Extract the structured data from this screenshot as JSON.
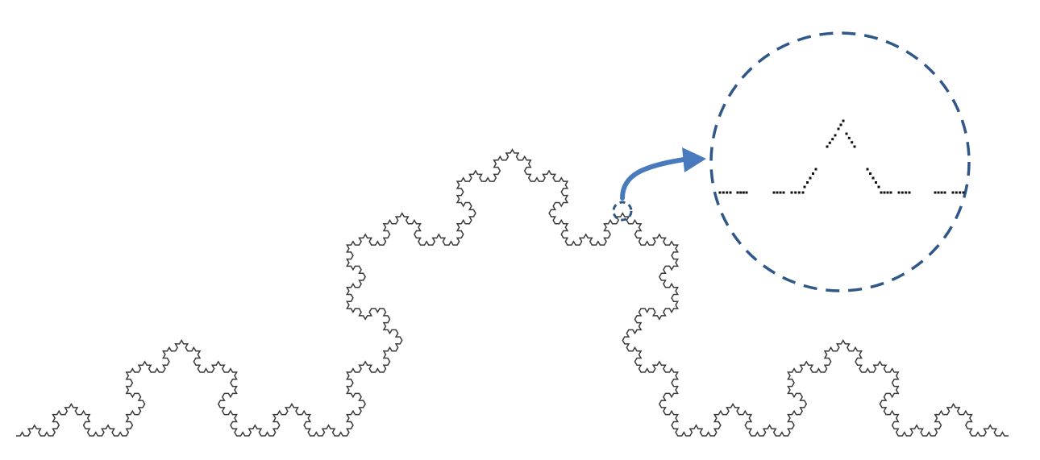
{
  "figure": {
    "curve": {
      "shape": "koch-curve",
      "iterations": 5,
      "stroke_color": "#3a3a3a"
    },
    "highlight_marker": {
      "shape": "dashed-circle",
      "color": "#2f5788"
    },
    "arrow": {
      "shape": "curved-arrow",
      "color": "#4a7abe"
    },
    "zoom_inset": {
      "shape": "dashed-circle",
      "color": "#2f5788",
      "content": "dotted-koch-generator",
      "dot_color": "#111111"
    }
  }
}
